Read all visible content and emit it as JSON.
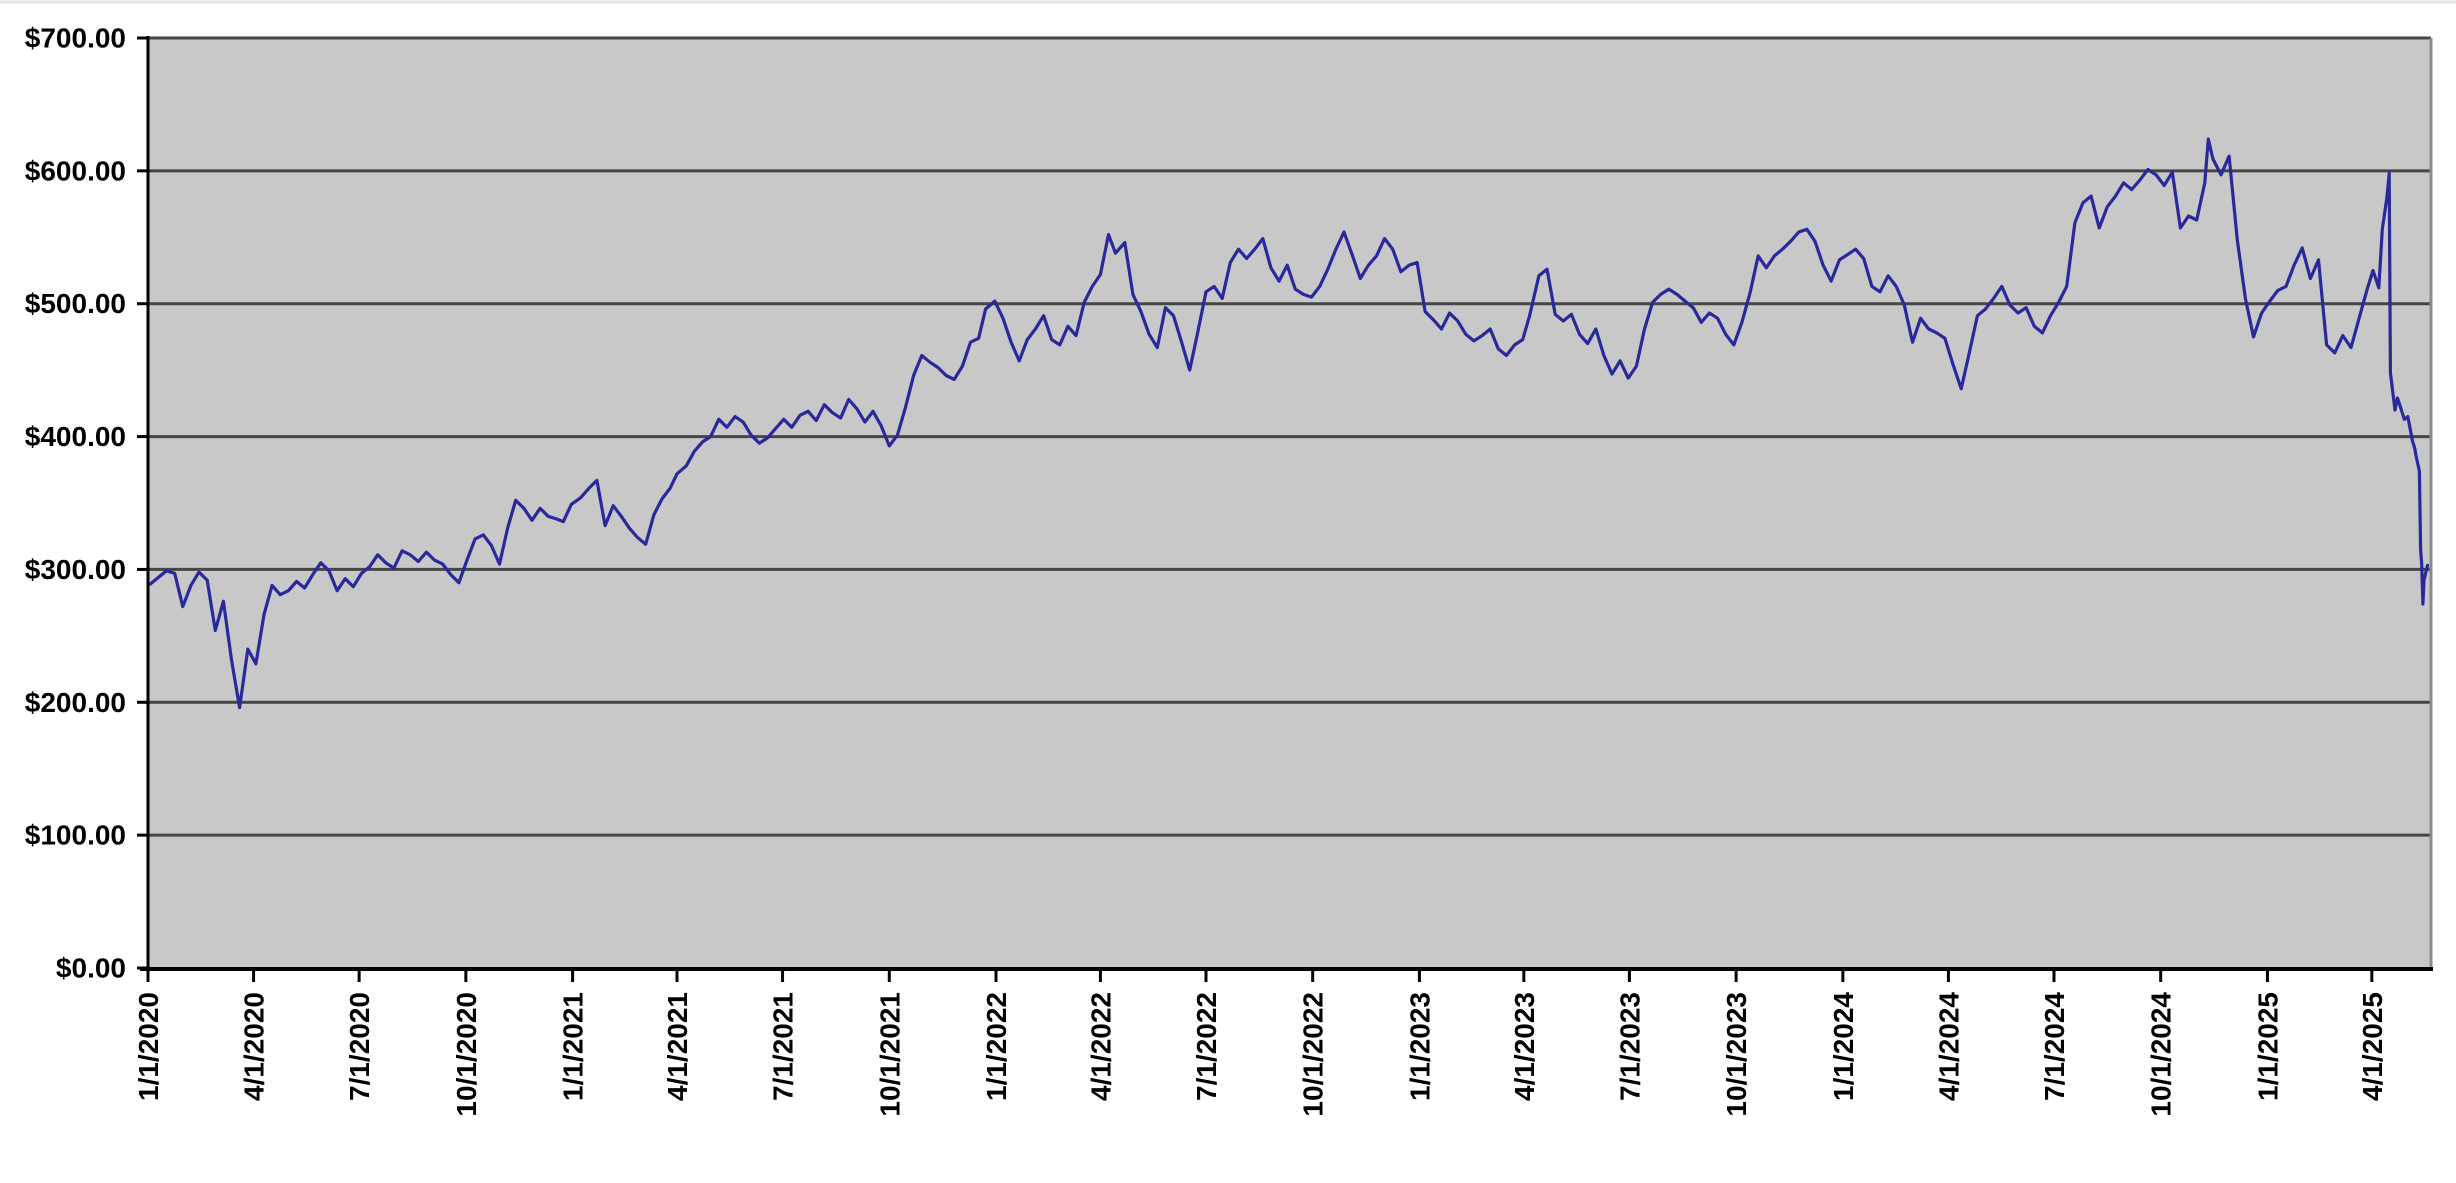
{
  "page": {
    "top_edge_rule_color": "#e2e2e2"
  },
  "chart_data": {
    "type": "line",
    "title": "",
    "legend_position": "none",
    "grid": true,
    "plot_bg_color": "#c8c8c8",
    "line_color": "#29299b",
    "grid_color": "#464646",
    "axis_color": "#000000",
    "plot_border_right_color": "#8a8a8a",
    "ylim": [
      0,
      700
    ],
    "y_tick_step": 100,
    "y_tick_labels": [
      "$0.00",
      "$100.00",
      "$200.00",
      "$300.00",
      "$400.00",
      "$500.00",
      "$600.00",
      "$700.00"
    ],
    "x_axis_start": "1/1/2020",
    "x_axis_end": "5/22/2025",
    "x_tick_labels": [
      "1/1/2020",
      "4/1/2020",
      "7/1/2020",
      "10/1/2020",
      "1/1/2021",
      "4/1/2021",
      "7/1/2021",
      "10/1/2021",
      "1/1/2022",
      "4/1/2022",
      "7/1/2022",
      "10/1/2022",
      "1/1/2023",
      "4/1/2023",
      "7/1/2023",
      "10/1/2023",
      "1/1/2024",
      "4/1/2024",
      "7/1/2024",
      "10/1/2024",
      "1/1/2025",
      "4/1/2025"
    ],
    "points": [
      [
        "2020-01-03",
        289
      ],
      [
        "2020-01-10",
        294
      ],
      [
        "2020-01-17",
        299
      ],
      [
        "2020-01-24",
        297
      ],
      [
        "2020-01-31",
        272
      ],
      [
        "2020-02-07",
        288
      ],
      [
        "2020-02-14",
        298
      ],
      [
        "2020-02-21",
        292
      ],
      [
        "2020-02-28",
        254
      ],
      [
        "2020-03-06",
        276
      ],
      [
        "2020-03-13",
        232
      ],
      [
        "2020-03-20",
        196
      ],
      [
        "2020-03-27",
        240
      ],
      [
        "2020-04-03",
        229
      ],
      [
        "2020-04-10",
        266
      ],
      [
        "2020-04-17",
        288
      ],
      [
        "2020-04-24",
        281
      ],
      [
        "2020-05-01",
        284
      ],
      [
        "2020-05-08",
        291
      ],
      [
        "2020-05-15",
        286
      ],
      [
        "2020-05-22",
        296
      ],
      [
        "2020-05-29",
        305
      ],
      [
        "2020-06-05",
        299
      ],
      [
        "2020-06-12",
        284
      ],
      [
        "2020-06-19",
        293
      ],
      [
        "2020-06-26",
        287
      ],
      [
        "2020-07-03",
        297
      ],
      [
        "2020-07-10",
        302
      ],
      [
        "2020-07-17",
        311
      ],
      [
        "2020-07-24",
        305
      ],
      [
        "2020-07-31",
        301
      ],
      [
        "2020-08-07",
        314
      ],
      [
        "2020-08-14",
        311
      ],
      [
        "2020-08-21",
        306
      ],
      [
        "2020-08-28",
        313
      ],
      [
        "2020-09-04",
        307
      ],
      [
        "2020-09-11",
        304
      ],
      [
        "2020-09-18",
        296
      ],
      [
        "2020-09-25",
        290
      ],
      [
        "2020-10-02",
        307
      ],
      [
        "2020-10-09",
        323
      ],
      [
        "2020-10-16",
        326
      ],
      [
        "2020-10-23",
        318
      ],
      [
        "2020-10-30",
        304
      ],
      [
        "2020-11-06",
        331
      ],
      [
        "2020-11-13",
        352
      ],
      [
        "2020-11-20",
        346
      ],
      [
        "2020-11-27",
        337
      ],
      [
        "2020-12-04",
        346
      ],
      [
        "2020-12-11",
        340
      ],
      [
        "2020-12-18",
        338
      ],
      [
        "2020-12-24",
        336
      ],
      [
        "2020-12-31",
        349
      ],
      [
        "2021-01-08",
        354
      ],
      [
        "2021-01-15",
        361
      ],
      [
        "2021-01-22",
        367
      ],
      [
        "2021-01-29",
        333
      ],
      [
        "2021-02-05",
        348
      ],
      [
        "2021-02-12",
        340
      ],
      [
        "2021-02-19",
        331
      ],
      [
        "2021-02-26",
        324
      ],
      [
        "2021-03-05",
        319
      ],
      [
        "2021-03-12",
        341
      ],
      [
        "2021-03-19",
        353
      ],
      [
        "2021-03-26",
        361
      ],
      [
        "2021-04-01",
        372
      ],
      [
        "2021-04-09",
        378
      ],
      [
        "2021-04-16",
        389
      ],
      [
        "2021-04-23",
        396
      ],
      [
        "2021-04-30",
        400
      ],
      [
        "2021-05-07",
        413
      ],
      [
        "2021-05-14",
        407
      ],
      [
        "2021-05-21",
        415
      ],
      [
        "2021-05-28",
        411
      ],
      [
        "2021-06-04",
        401
      ],
      [
        "2021-06-11",
        395
      ],
      [
        "2021-06-18",
        399
      ],
      [
        "2021-06-25",
        406
      ],
      [
        "2021-07-02",
        413
      ],
      [
        "2021-07-09",
        407
      ],
      [
        "2021-07-16",
        416
      ],
      [
        "2021-07-23",
        419
      ],
      [
        "2021-07-30",
        412
      ],
      [
        "2021-08-06",
        424
      ],
      [
        "2021-08-13",
        418
      ],
      [
        "2021-08-20",
        414
      ],
      [
        "2021-08-27",
        428
      ],
      [
        "2021-09-03",
        421
      ],
      [
        "2021-09-10",
        411
      ],
      [
        "2021-09-17",
        419
      ],
      [
        "2021-09-24",
        408
      ],
      [
        "2021-10-01",
        393
      ],
      [
        "2021-10-08",
        401
      ],
      [
        "2021-10-15",
        422
      ],
      [
        "2021-10-22",
        446
      ],
      [
        "2021-10-29",
        461
      ],
      [
        "2021-11-05",
        456
      ],
      [
        "2021-11-12",
        452
      ],
      [
        "2021-11-19",
        446
      ],
      [
        "2021-11-26",
        443
      ],
      [
        "2021-12-03",
        453
      ],
      [
        "2021-12-10",
        471
      ],
      [
        "2021-12-17",
        474
      ],
      [
        "2021-12-23",
        496
      ],
      [
        "2021-12-31",
        502
      ],
      [
        "2022-01-07",
        489
      ],
      [
        "2022-01-14",
        471
      ],
      [
        "2022-01-21",
        457
      ],
      [
        "2022-01-28",
        473
      ],
      [
        "2022-02-04",
        481
      ],
      [
        "2022-02-11",
        491
      ],
      [
        "2022-02-18",
        473
      ],
      [
        "2022-02-25",
        469
      ],
      [
        "2022-03-04",
        483
      ],
      [
        "2022-03-11",
        476
      ],
      [
        "2022-03-18",
        501
      ],
      [
        "2022-03-25",
        513
      ],
      [
        "2022-04-01",
        522
      ],
      [
        "2022-04-08",
        552
      ],
      [
        "2022-04-14",
        538
      ],
      [
        "2022-04-22",
        546
      ],
      [
        "2022-04-29",
        507
      ],
      [
        "2022-05-06",
        494
      ],
      [
        "2022-05-13",
        477
      ],
      [
        "2022-05-20",
        467
      ],
      [
        "2022-05-27",
        497
      ],
      [
        "2022-06-03",
        491
      ],
      [
        "2022-06-10",
        471
      ],
      [
        "2022-06-17",
        450
      ],
      [
        "2022-06-24",
        479
      ],
      [
        "2022-07-01",
        509
      ],
      [
        "2022-07-08",
        513
      ],
      [
        "2022-07-15",
        504
      ],
      [
        "2022-07-22",
        531
      ],
      [
        "2022-07-29",
        541
      ],
      [
        "2022-08-05",
        534
      ],
      [
        "2022-08-12",
        541
      ],
      [
        "2022-08-19",
        549
      ],
      [
        "2022-08-26",
        527
      ],
      [
        "2022-09-02",
        517
      ],
      [
        "2022-09-09",
        529
      ],
      [
        "2022-09-16",
        511
      ],
      [
        "2022-09-23",
        507
      ],
      [
        "2022-09-30",
        505
      ],
      [
        "2022-10-07",
        513
      ],
      [
        "2022-10-14",
        526
      ],
      [
        "2022-10-21",
        541
      ],
      [
        "2022-10-28",
        554
      ],
      [
        "2022-11-04",
        537
      ],
      [
        "2022-11-11",
        519
      ],
      [
        "2022-11-18",
        529
      ],
      [
        "2022-11-25",
        536
      ],
      [
        "2022-12-02",
        549
      ],
      [
        "2022-12-09",
        541
      ],
      [
        "2022-12-16",
        524
      ],
      [
        "2022-12-23",
        529
      ],
      [
        "2022-12-30",
        531
      ],
      [
        "2023-01-06",
        494
      ],
      [
        "2023-01-13",
        488
      ],
      [
        "2023-01-20",
        481
      ],
      [
        "2023-01-27",
        493
      ],
      [
        "2023-02-03",
        487
      ],
      [
        "2023-02-10",
        477
      ],
      [
        "2023-02-17",
        472
      ],
      [
        "2023-02-24",
        476
      ],
      [
        "2023-03-03",
        481
      ],
      [
        "2023-03-10",
        466
      ],
      [
        "2023-03-17",
        461
      ],
      [
        "2023-03-24",
        469
      ],
      [
        "2023-03-31",
        473
      ],
      [
        "2023-04-06",
        491
      ],
      [
        "2023-04-14",
        521
      ],
      [
        "2023-04-21",
        526
      ],
      [
        "2023-04-28",
        492
      ],
      [
        "2023-05-05",
        487
      ],
      [
        "2023-05-12",
        492
      ],
      [
        "2023-05-19",
        477
      ],
      [
        "2023-05-26",
        470
      ],
      [
        "2023-06-02",
        481
      ],
      [
        "2023-06-09",
        461
      ],
      [
        "2023-06-16",
        447
      ],
      [
        "2023-06-23",
        457
      ],
      [
        "2023-06-30",
        444
      ],
      [
        "2023-07-07",
        453
      ],
      [
        "2023-07-14",
        481
      ],
      [
        "2023-07-21",
        501
      ],
      [
        "2023-07-28",
        507
      ],
      [
        "2023-08-04",
        511
      ],
      [
        "2023-08-11",
        507
      ],
      [
        "2023-08-18",
        502
      ],
      [
        "2023-08-25",
        497
      ],
      [
        "2023-09-01",
        486
      ],
      [
        "2023-09-08",
        493
      ],
      [
        "2023-09-15",
        489
      ],
      [
        "2023-09-22",
        477
      ],
      [
        "2023-09-29",
        469
      ],
      [
        "2023-10-06",
        486
      ],
      [
        "2023-10-13",
        508
      ],
      [
        "2023-10-20",
        536
      ],
      [
        "2023-10-27",
        527
      ],
      [
        "2023-11-03",
        536
      ],
      [
        "2023-11-10",
        541
      ],
      [
        "2023-11-17",
        547
      ],
      [
        "2023-11-24",
        554
      ],
      [
        "2023-12-01",
        556
      ],
      [
        "2023-12-08",
        547
      ],
      [
        "2023-12-15",
        529
      ],
      [
        "2023-12-22",
        517
      ],
      [
        "2023-12-29",
        533
      ],
      [
        "2024-01-05",
        537
      ],
      [
        "2024-01-12",
        541
      ],
      [
        "2024-01-19",
        534
      ],
      [
        "2024-01-26",
        513
      ],
      [
        "2024-02-02",
        509
      ],
      [
        "2024-02-09",
        521
      ],
      [
        "2024-02-16",
        513
      ],
      [
        "2024-02-23",
        499
      ],
      [
        "2024-03-01",
        471
      ],
      [
        "2024-03-08",
        489
      ],
      [
        "2024-03-15",
        481
      ],
      [
        "2024-03-22",
        478
      ],
      [
        "2024-03-29",
        474
      ],
      [
        "2024-04-05",
        454
      ],
      [
        "2024-04-12",
        436
      ],
      [
        "2024-04-19",
        463
      ],
      [
        "2024-04-26",
        491
      ],
      [
        "2024-05-03",
        496
      ],
      [
        "2024-05-10",
        504
      ],
      [
        "2024-05-17",
        513
      ],
      [
        "2024-05-24",
        499
      ],
      [
        "2024-05-31",
        493
      ],
      [
        "2024-06-07",
        497
      ],
      [
        "2024-06-14",
        483
      ],
      [
        "2024-06-21",
        478
      ],
      [
        "2024-06-28",
        491
      ],
      [
        "2024-07-05",
        501
      ],
      [
        "2024-07-12",
        513
      ],
      [
        "2024-07-19",
        561
      ],
      [
        "2024-07-26",
        576
      ],
      [
        "2024-08-02",
        581
      ],
      [
        "2024-08-09",
        557
      ],
      [
        "2024-08-16",
        573
      ],
      [
        "2024-08-23",
        581
      ],
      [
        "2024-08-30",
        591
      ],
      [
        "2024-09-06",
        586
      ],
      [
        "2024-09-13",
        593
      ],
      [
        "2024-09-20",
        601
      ],
      [
        "2024-09-27",
        597
      ],
      [
        "2024-10-04",
        589
      ],
      [
        "2024-10-11",
        599
      ],
      [
        "2024-10-18",
        557
      ],
      [
        "2024-10-25",
        566
      ],
      [
        "2024-11-01",
        563
      ],
      [
        "2024-11-08",
        591
      ],
      [
        "2024-11-11",
        624
      ],
      [
        "2024-11-15",
        609
      ],
      [
        "2024-11-22",
        597
      ],
      [
        "2024-11-29",
        611
      ],
      [
        "2024-12-06",
        548
      ],
      [
        "2024-12-13",
        504
      ],
      [
        "2024-12-20",
        475
      ],
      [
        "2024-12-27",
        493
      ],
      [
        "2025-01-03",
        502
      ],
      [
        "2025-01-10",
        510
      ],
      [
        "2025-01-17",
        513
      ],
      [
        "2025-01-24",
        529
      ],
      [
        "2025-01-31",
        542
      ],
      [
        "2025-02-07",
        519
      ],
      [
        "2025-02-14",
        533
      ],
      [
        "2025-02-21",
        469
      ],
      [
        "2025-02-28",
        463
      ],
      [
        "2025-03-07",
        476
      ],
      [
        "2025-03-14",
        467
      ],
      [
        "2025-03-21",
        489
      ],
      [
        "2025-03-28",
        511
      ],
      [
        "2025-04-02",
        525
      ],
      [
        "2025-04-07",
        512
      ],
      [
        "2025-04-10",
        556
      ],
      [
        "2025-04-14",
        580
      ],
      [
        "2025-04-16",
        598
      ],
      [
        "2025-04-17",
        448
      ],
      [
        "2025-04-21",
        420
      ],
      [
        "2025-04-23",
        429
      ],
      [
        "2025-04-25",
        424
      ],
      [
        "2025-04-29",
        413
      ],
      [
        "2025-05-02",
        415
      ],
      [
        "2025-05-06",
        397
      ],
      [
        "2025-05-08",
        391
      ],
      [
        "2025-05-09",
        386
      ],
      [
        "2025-05-12",
        374
      ],
      [
        "2025-05-13",
        315
      ],
      [
        "2025-05-14",
        304
      ],
      [
        "2025-05-15",
        274
      ],
      [
        "2025-05-16",
        292
      ],
      [
        "2025-05-19",
        303
      ]
    ]
  }
}
